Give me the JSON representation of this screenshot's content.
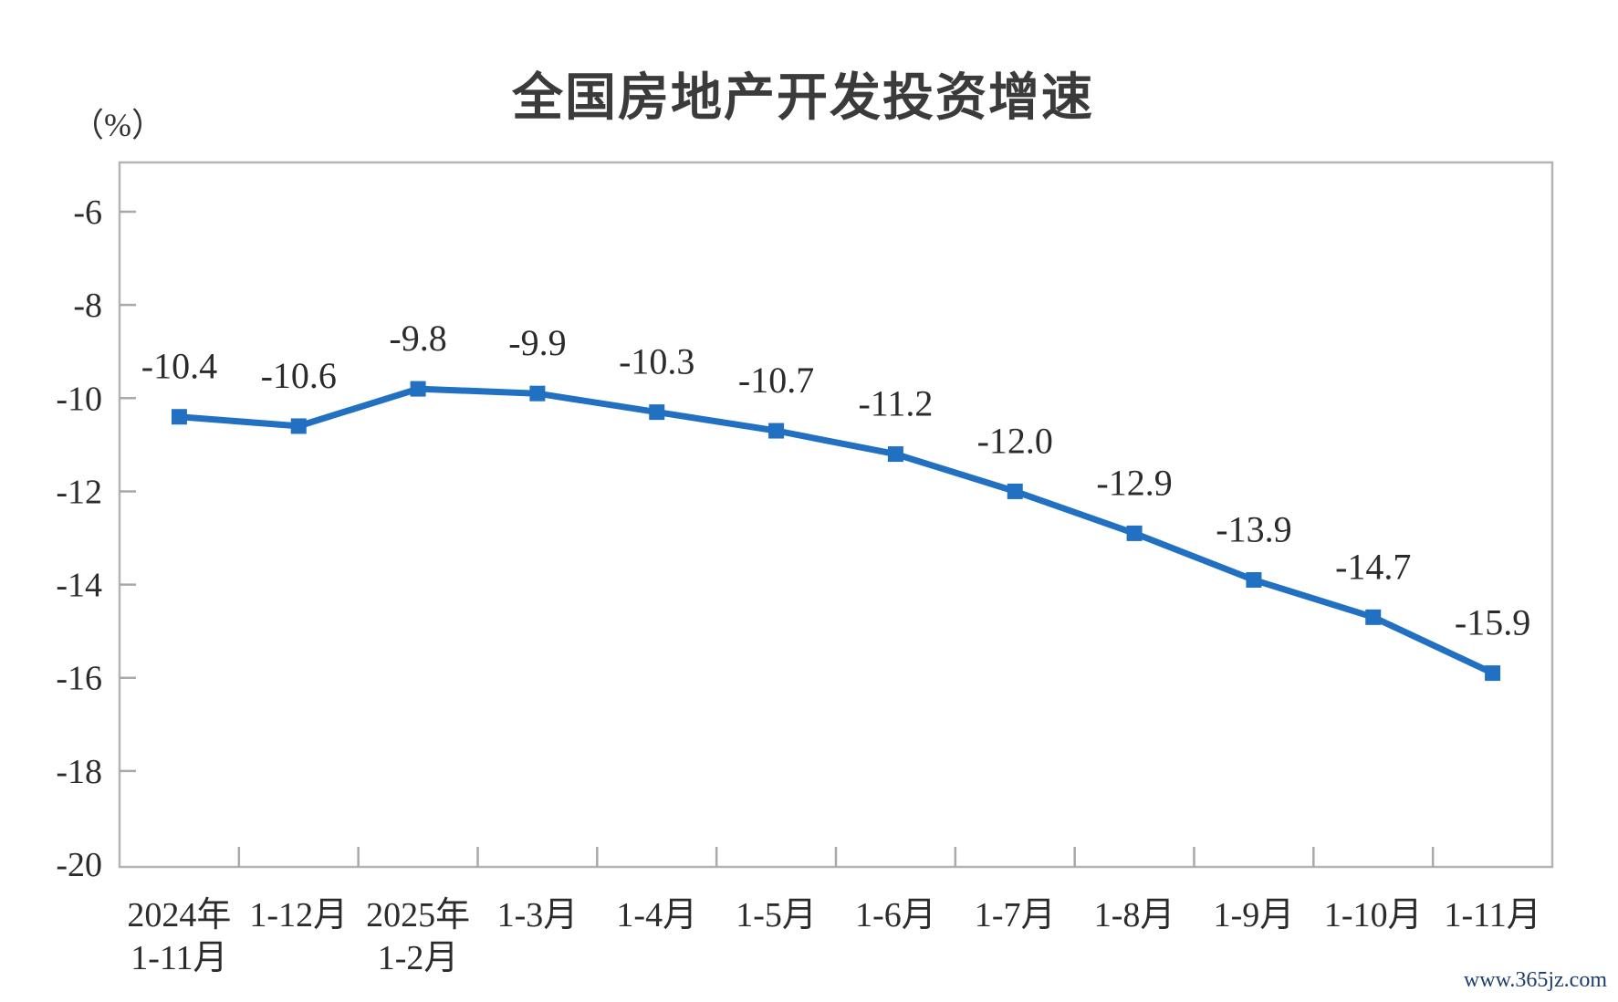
{
  "chart": {
    "title": "全国房地产开发投资增速",
    "y_unit": "（%）"
  },
  "watermark": "www.365jz.com",
  "chart_data": {
    "type": "line",
    "title": "全国房地产开发投资增速",
    "y_axis_unit": "（%）",
    "categories": [
      "2024年\n1-11月",
      "1-12月",
      "2025年\n1-2月",
      "1-3月",
      "1-4月",
      "1-5月",
      "1-6月",
      "1-7月",
      "1-8月",
      "1-9月",
      "1-10月",
      "1-11月"
    ],
    "values": [
      -10.4,
      -10.6,
      -9.8,
      -9.9,
      -10.3,
      -10.7,
      -11.2,
      -12.0,
      -12.9,
      -13.9,
      -14.7,
      -15.9
    ],
    "data_labels": [
      "-10.4",
      "-10.6",
      "-9.8",
      "-9.9",
      "-10.3",
      "-10.7",
      "-11.2",
      "-12.0",
      "-12.9",
      "-13.9",
      "-14.7",
      "-15.9"
    ],
    "series_name": "全国房地产开发投资增速",
    "xlabel": "",
    "ylabel": "（%）",
    "ylim": [
      -20,
      -5
    ],
    "y_ticks": [
      -6,
      -8,
      -10,
      -12,
      -14,
      -16,
      -18,
      -20
    ],
    "grid": false,
    "legend": "none",
    "marker": "square",
    "colors": {
      "line": "#2170c2",
      "marker": "#2170c2",
      "axis": "#b4b4b4",
      "tick": "#a9a9a9",
      "text": "#2b2b2b",
      "title": "#3b3b3b",
      "watermark": "#1d3c6e"
    }
  }
}
